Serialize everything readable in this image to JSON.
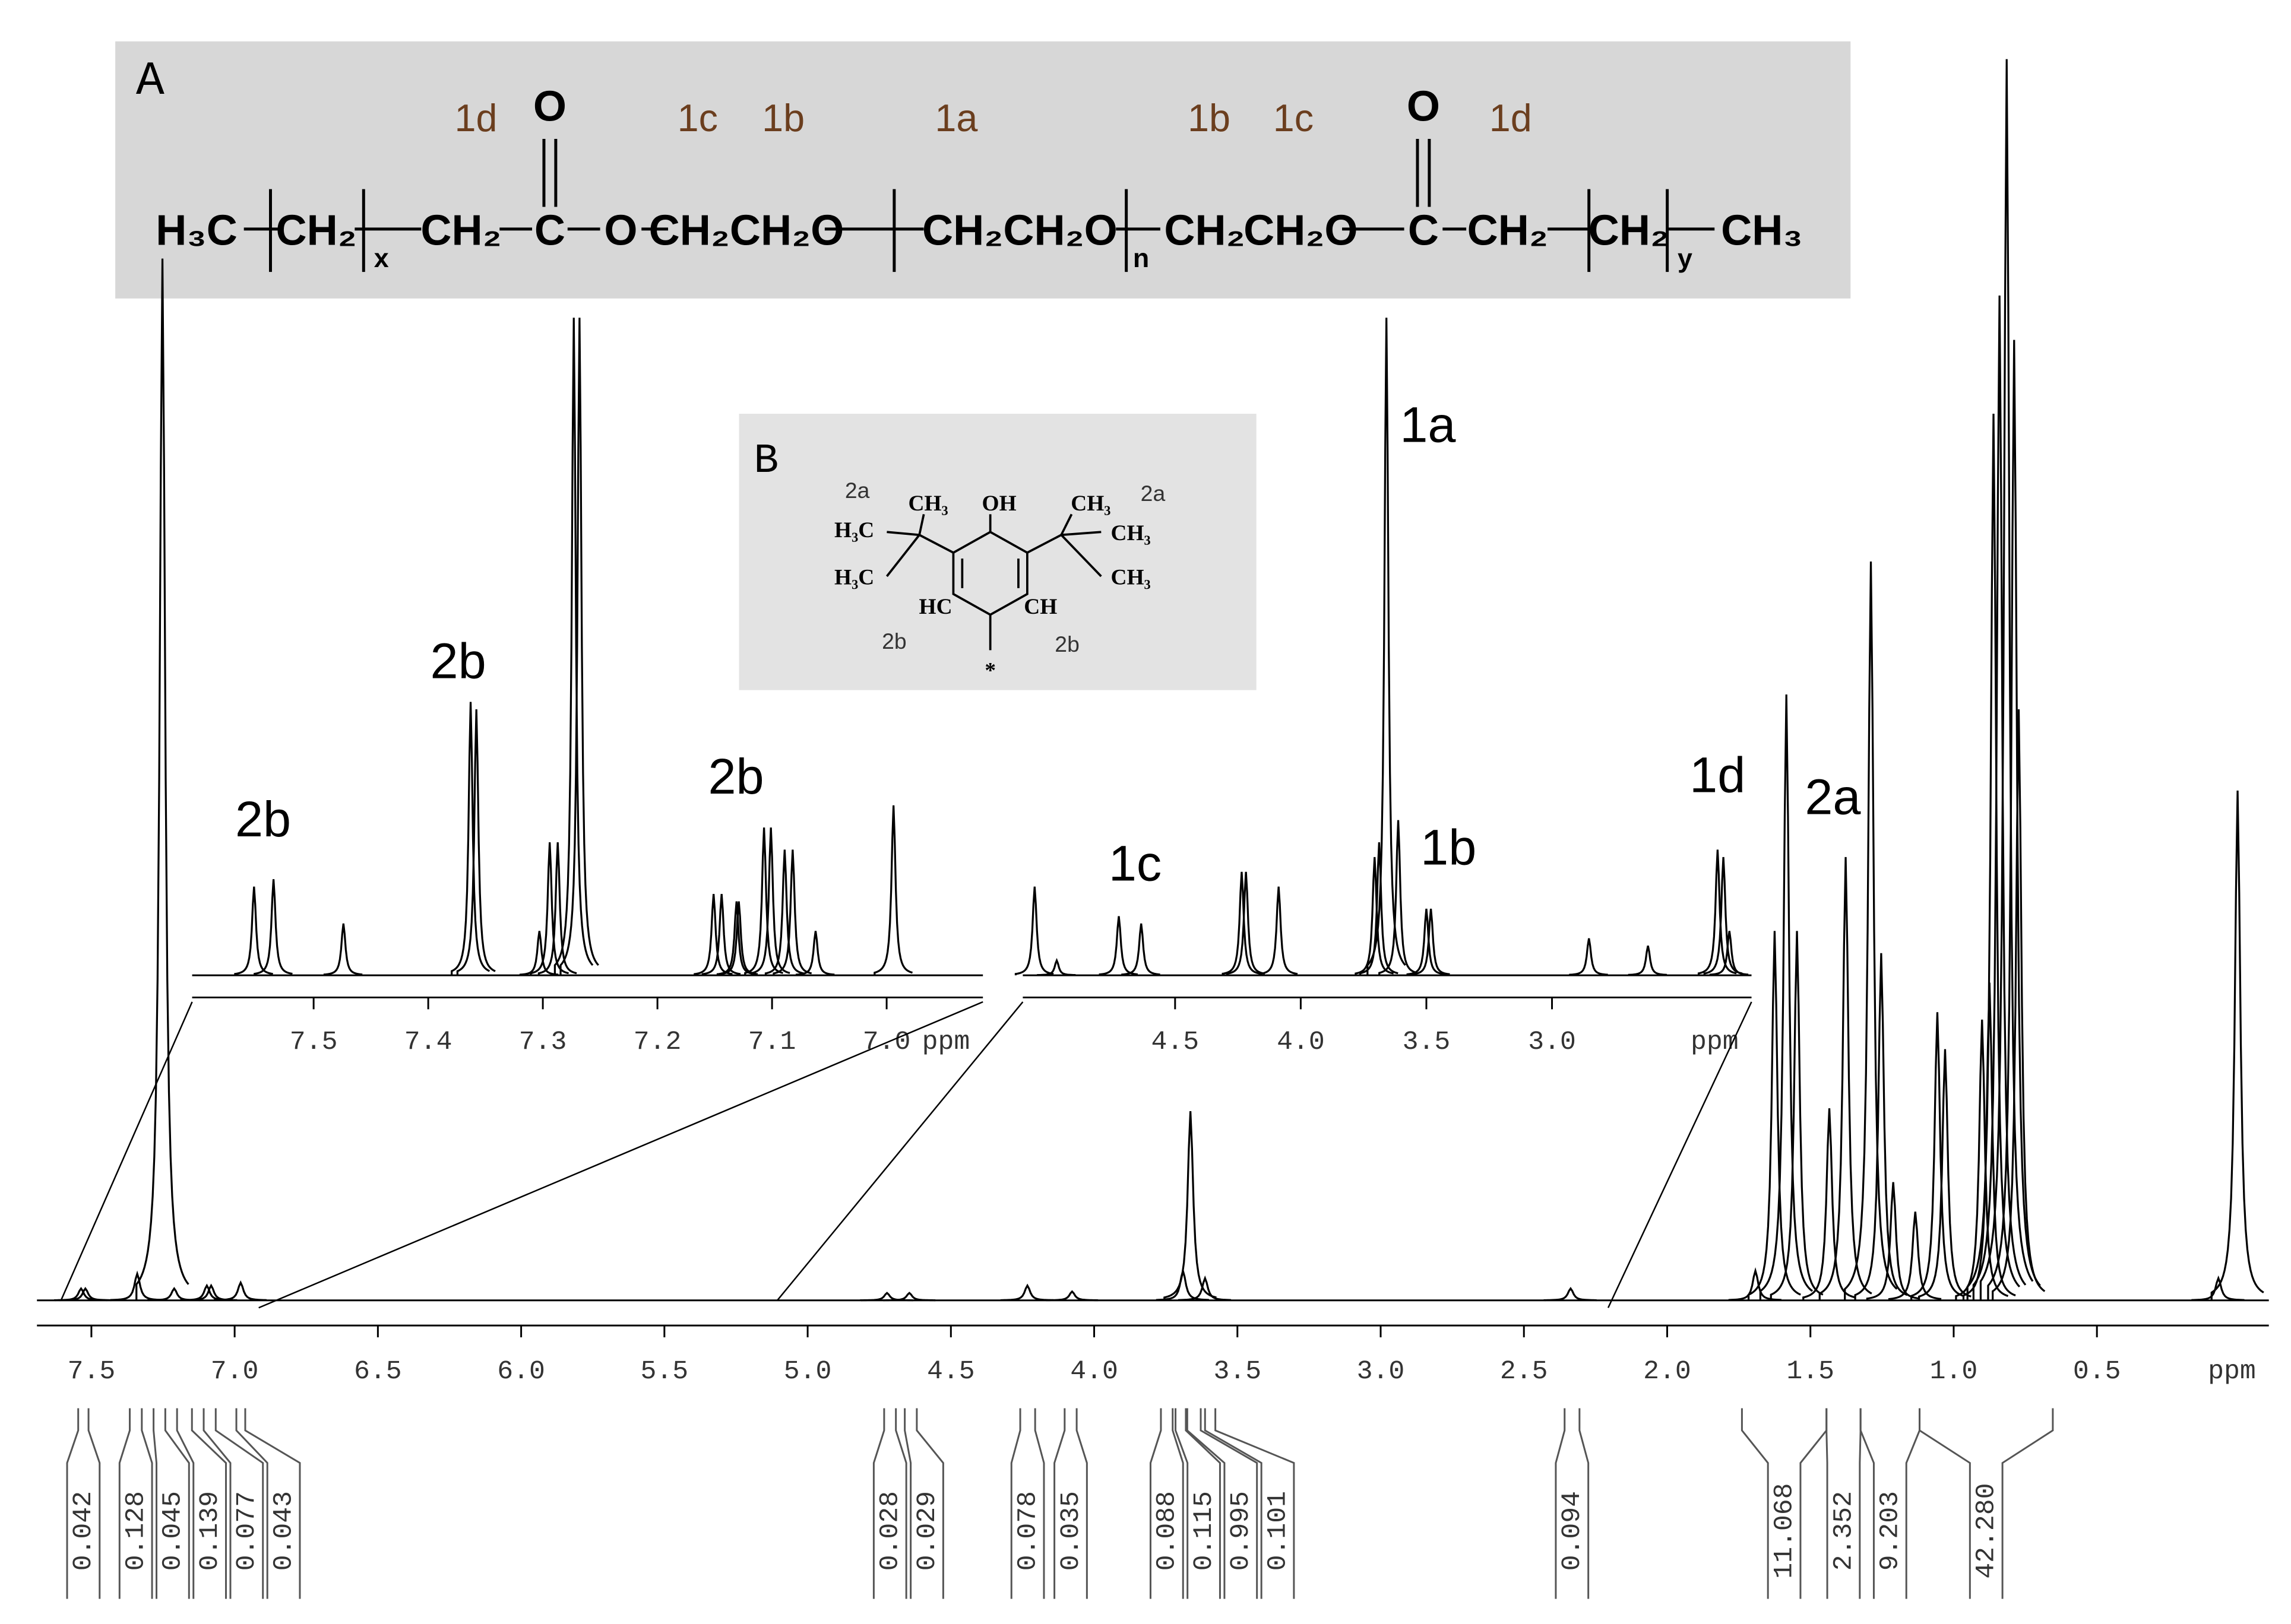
{
  "structure_a": {
    "label": "A",
    "positions": [
      "1d",
      "1c",
      "1b",
      "1a",
      "1b",
      "1c",
      "1d"
    ],
    "oxygens": [
      "O",
      "O"
    ],
    "formula": [
      "H₃C",
      "CH₂",
      "x",
      "CH₂",
      "C",
      "O",
      "CH₂CH₂O",
      "CH₂CH₂O",
      "n",
      "CH₂",
      "CH₂O",
      "C",
      "CH₂",
      "CH₂",
      "y",
      "CH₃"
    ]
  },
  "structure_b": {
    "label": "B",
    "texts": [
      "2a",
      "CH₃",
      "OH",
      "CH₃",
      "2a",
      "H₃C",
      "CH₃",
      "H₃C",
      "CH₃",
      "HC",
      "CH",
      "2b",
      "2b",
      "*"
    ]
  },
  "chart_data": [
    {
      "type": "nmr",
      "xlabel": "ppm",
      "xlim": [
        7.69,
        -0.1
      ],
      "xticks": [
        7.5,
        {
          "value": 7,
          "label": "7.0"
        },
        6.5,
        {
          "value": 6,
          "label": "6.0"
        },
        5.5,
        {
          "value": 5,
          "label": "5.0"
        },
        4.5,
        {
          "value": 4,
          "label": "4.0"
        },
        3.5,
        {
          "value": 3,
          "label": "3.0"
        },
        2.5,
        {
          "value": 2,
          "label": "2.0"
        },
        1.5,
        {
          "value": 1,
          "label": "1.0"
        },
        0.5
      ],
      "x": [
        7.536,
        7.521,
        7.34,
        7.252,
        7.211,
        7.097,
        7.082,
        6.979,
        4.723,
        4.645,
        4.233,
        4.077,
        3.69,
        3.664,
        3.613,
        2.337,
        1.692,
        1.625,
        1.584,
        1.547,
        1.434,
        1.377,
        1.289,
        1.253,
        1.211,
        1.134,
        1.057,
        1.03,
        0.901,
        0.875,
        0.861,
        0.84,
        0.815,
        0.789,
        0.773,
        0.076,
        0.009
      ],
      "values": [
        8,
        8,
        18,
        705,
        8,
        10,
        10,
        12,
        5,
        5,
        10,
        6,
        20,
        128,
        15,
        8,
        20,
        250,
        410,
        250,
        130,
        300,
        500,
        235,
        80,
        60,
        195,
        170,
        190,
        215,
        600,
        680,
        840,
        650,
        400,
        15,
        345
      ],
      "color": "#000000",
      "annotations": [
        "2a"
      ],
      "integrals": {
        "ranges": [
          [
            7.546,
            7.51
          ],
          [
            7.366,
            7.324
          ],
          [
            7.283,
            7.242
          ],
          [
            7.201,
            7.149
          ],
          [
            7.108,
            7.066
          ],
          [
            6.994,
            6.963
          ],
          [
            4.733,
            4.692
          ],
          [
            4.661,
            4.619
          ],
          [
            4.258,
            4.206
          ],
          [
            4.103,
            4.061
          ],
          [
            3.767,
            3.726
          ],
          [
            3.716,
            3.68
          ],
          [
            3.675,
            3.628
          ],
          [
            3.613,
            3.577
          ],
          [
            2.358,
            2.306
          ],
          [
            1.739,
            1.444
          ],
          [
            1.444,
            1.325
          ],
          [
            1.325,
            1.119
          ],
          [
            1.119,
            0.654
          ]
        ],
        "values": [
          0.042,
          0.128,
          0.045,
          0.139,
          0.077,
          0.043,
          0.028,
          0.029,
          0.078,
          0.035,
          0.088,
          0.115,
          0.995,
          0.101,
          0.094,
          11.068,
          2.352,
          9.203,
          42.28
        ],
        "value_labels": [
          "0.042",
          "0.128",
          "0.045",
          "0.139",
          "0.077",
          "0.043",
          "0.028",
          "0.029",
          "0.078",
          "0.035",
          "0.088",
          "0.115",
          "0.995",
          "0.101",
          "0.094",
          "11.068",
          "2.352",
          "9.203",
          "42.280"
        ]
      }
    },
    {
      "type": "nmr",
      "xlabel": "ppm",
      "xlim": [
        7.606,
        6.916
      ],
      "xticks": [
        7.5,
        7.4,
        7.3,
        7.2,
        7.1,
        {
          "value": 7,
          "label": "7.0"
        }
      ],
      "x": [
        7.552,
        7.535,
        7.474,
        7.363,
        7.358,
        7.294,
        7.287,
        7.303,
        7.273,
        7.268,
        7.151,
        7.144,
        7.131,
        7.129,
        7.107,
        7.101,
        7.089,
        7.082,
        7.062,
        6.994
      ],
      "values": [
        60,
        65,
        35,
        185,
        180,
        90,
        90,
        30,
        445,
        445,
        55,
        55,
        50,
        50,
        100,
        100,
        85,
        85,
        30,
        115
      ],
      "color": "#000000",
      "annotations": [
        "2b",
        "2b",
        "2b"
      ]
    },
    {
      "type": "nmr",
      "xlabel": "ppm",
      "xlim": [
        5.106,
        2.206
      ],
      "xticks": [
        4.5,
        {
          "value": 4,
          "label": "4.0"
        },
        3.5,
        {
          "value": 3,
          "label": "3.0"
        }
      ],
      "x": [
        5.059,
        4.971,
        4.724,
        4.635,
        4.235,
        4.218,
        4.088,
        3.706,
        3.688,
        3.659,
        3.612,
        3.5,
        3.482,
        2.853,
        2.618,
        2.341,
        2.318,
        2.294
      ],
      "values": [
        60,
        10,
        40,
        35,
        70,
        70,
        60,
        80,
        90,
        445,
        105,
        45,
        45,
        25,
        20,
        85,
        80,
        30
      ],
      "color": "#000000",
      "annotations": [
        "1a",
        "1b",
        "1c",
        "1d"
      ]
    }
  ]
}
